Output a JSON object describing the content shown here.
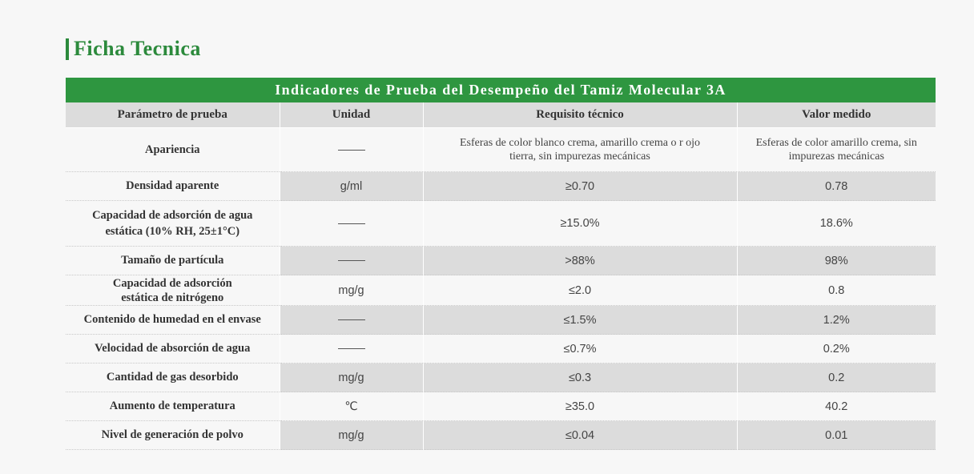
{
  "heading": "Ficha Tecnica",
  "banner": "Indicadores de Prueba del Desempeño del Tamiz Molecular 3A",
  "columns": [
    "Parámetro de prueba",
    "Unidad",
    "Requisito técnico",
    "Valor medido"
  ],
  "rows": [
    {
      "param": "Apariencia",
      "unit": "——",
      "req": "Esferas de color blanco crema, amarillo crema o r ojo tierra, sin impurezas mecánicas",
      "val": "Esferas de color amarillo crema, sin impurezas mecánicas"
    },
    {
      "param": "Densidad aparente",
      "unit": "g/ml",
      "req": "≥0.70",
      "val": "0.78"
    },
    {
      "param": "Capacidad de adsorción de agua estática (10% RH, 25±1°C)",
      "unit": "——",
      "req": "≥15.0%",
      "val": "18.6%"
    },
    {
      "param": "Tamaño de partícula",
      "unit": "——",
      "req": ">88%",
      "val": "98%"
    },
    {
      "param": "Capacidad de adsorción estática de nitrógeno",
      "unit": "mg/g",
      "req": "≤2.0",
      "val": "0.8"
    },
    {
      "param": "Contenido de humedad en el envase",
      "unit": "——",
      "req": "≤1.5%",
      "val": "1.2%"
    },
    {
      "param": "Velocidad de absorción de agua",
      "unit": "——",
      "req": "≤0.7%",
      "val": "0.2%"
    },
    {
      "param": "Cantidad de gas desorbido",
      "unit": "mg/g",
      "req": "≤0.3",
      "val": "0.2"
    },
    {
      "param": "Aumento de temperatura",
      "unit": "℃",
      "req": "≥35.0",
      "val": "40.2"
    },
    {
      "param": "Nivel de generación de polvo",
      "unit": "mg/g",
      "req": "≤0.04",
      "val": "0.01"
    }
  ],
  "colors": {
    "accent": "#2e9640",
    "heading": "#2c8a3c",
    "shade": "#dcdcdc"
  }
}
